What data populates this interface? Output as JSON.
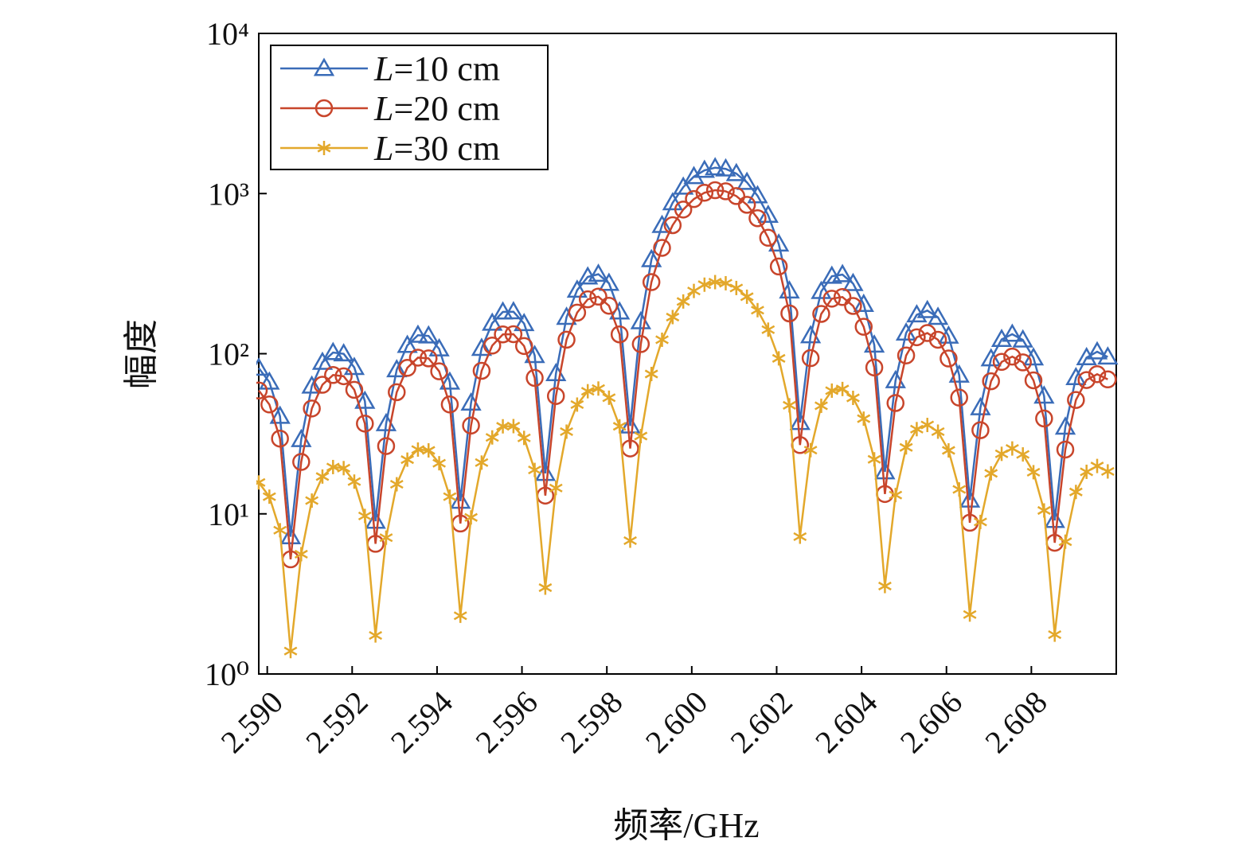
{
  "chart_data": {
    "type": "line",
    "yscale": "log",
    "legend": "upper left",
    "xlabel": "频率/GHz",
    "ylabel": "幅度",
    "xlim": [
      2.5898,
      2.61
    ],
    "ylim": [
      1,
      10000
    ],
    "xticks": [
      {
        "value": 2.59,
        "label": "2.590"
      },
      {
        "value": 2.592,
        "label": "2.592"
      },
      {
        "value": 2.594,
        "label": "2.594"
      },
      {
        "value": 2.596,
        "label": "2.596"
      },
      {
        "value": 2.598,
        "label": "2.598"
      },
      {
        "value": 2.6,
        "label": "2.600"
      },
      {
        "value": 2.602,
        "label": "2.602"
      },
      {
        "value": 2.604,
        "label": "2.604"
      },
      {
        "value": 2.606,
        "label": "2.606"
      },
      {
        "value": 2.608,
        "label": "2.608"
      }
    ],
    "yticks": [
      {
        "value": 1,
        "label": "10⁰"
      },
      {
        "value": 10,
        "label": "10¹"
      },
      {
        "value": 100,
        "label": "10²"
      },
      {
        "value": 1000,
        "label": "10³"
      },
      {
        "value": 10000,
        "label": "10⁴"
      }
    ],
    "x": [
      2.5898,
      2.59005,
      2.5903,
      2.59055,
      2.5908,
      2.59105,
      2.5913,
      2.59155,
      2.5918,
      2.59205,
      2.5923,
      2.59255,
      2.5928,
      2.59305,
      2.5933,
      2.59355,
      2.5938,
      2.59405,
      2.5943,
      2.59455,
      2.5948,
      2.59505,
      2.5953,
      2.59555,
      2.5958,
      2.59605,
      2.5963,
      2.59655,
      2.5968,
      2.59705,
      2.5973,
      2.59755,
      2.5978,
      2.59805,
      2.5983,
      2.59855,
      2.5988,
      2.59905,
      2.5993,
      2.59955,
      2.5998,
      2.60005,
      2.6003,
      2.60055,
      2.6008,
      2.60105,
      2.6013,
      2.60155,
      2.6018,
      2.60205,
      2.6023,
      2.60255,
      2.6028,
      2.60305,
      2.6033,
      2.60355,
      2.6038,
      2.60405,
      2.6043,
      2.60455,
      2.6048,
      2.60505,
      2.6053,
      2.60555,
      2.6058,
      2.60605,
      2.6063,
      2.60655,
      2.6068,
      2.60705,
      2.6073,
      2.60755,
      2.6078,
      2.60805,
      2.6083,
      2.60855,
      2.6088,
      2.60905,
      2.6093,
      2.60955,
      2.6098
    ],
    "series": [
      {
        "name": "L=10 cm",
        "color": "#3a6cb8",
        "marker": "triangle",
        "values": [
          81.3,
          66.5,
          40.7,
          7.2,
          29.1,
          62.8,
          88.4,
          101.7,
          99.8,
          82.1,
          50.5,
          9.0,
          36.6,
          79.4,
          112.7,
          130.5,
          129.1,
          107.2,
          66.5,
          12.0,
          49.2,
          108.0,
          155.2,
          182.3,
          182.8,
          154.3,
          97.5,
          17.9,
          75.1,
          168.9,
          249.3,
          301.7,
          313.6,
          275.2,
          182.3,
          35.4,
          158.5,
          386.7,
          632.6,
          876.5,
          1097.5,
          1276.3,
          1397.1,
          1449.3,
          1426.2,
          1332.1,
          1174.9,
          968.6,
          731.7,
          484.0,
          246.5,
          37.2,
          129.6,
          244.8,
          304.6,
          311.9,
          274.3,
          203.4,
          113.3,
          18.3,
          67.9,
          134.7,
          175.0,
          185.9,
          168.8,
          128.8,
          73.5,
          12.2,
          46.0,
          92.9,
          122.8,
          132.4,
          121.9,
          94.2,
          54.4,
          9.1,
          34.8,
          70.9,
          94.5,
          102.8,
          95.4
        ]
      },
      {
        "name": "L=20 cm",
        "color": "#c8452b",
        "marker": "circle",
        "values": [
          58.9,
          48.2,
          29.5,
          5.2,
          21.1,
          45.5,
          64.0,
          73.6,
          72.3,
          59.5,
          36.6,
          6.5,
          26.5,
          57.5,
          81.6,
          94.5,
          93.5,
          77.6,
          48.2,
          8.7,
          35.6,
          78.2,
          112.4,
          132.0,
          132.4,
          111.7,
          70.6,
          13.0,
          54.4,
          122.3,
          180.5,
          218.5,
          227.1,
          199.3,
          132.0,
          25.6,
          114.8,
          280.0,
          458.1,
          634.7,
          794.7,
          924.2,
          1011.7,
          1049.5,
          1032.8,
          964.6,
          850.8,
          701.4,
          529.8,
          350.5,
          178.5,
          26.9,
          93.9,
          177.2,
          220.6,
          225.9,
          198.7,
          147.3,
          82.0,
          13.3,
          49.2,
          97.5,
          126.7,
          134.6,
          122.2,
          93.3,
          53.2,
          8.8,
          33.3,
          67.3,
          88.9,
          95.9,
          88.3,
          68.2,
          39.4,
          6.6,
          25.2,
          51.4,
          68.5,
          74.5,
          69.1
        ]
      },
      {
        "name": "L=30 cm",
        "color": "#e3a82b",
        "marker": "asterisk",
        "values": [
          15.7,
          12.8,
          7.9,
          1.39,
          5.6,
          12.1,
          17.1,
          19.6,
          19.3,
          15.9,
          9.7,
          1.74,
          7.1,
          15.3,
          21.8,
          25.2,
          24.9,
          20.7,
          12.8,
          2.31,
          9.5,
          20.9,
          30.0,
          35.2,
          35.3,
          29.8,
          18.8,
          3.46,
          14.5,
          32.6,
          48.1,
          58.3,
          60.6,
          53.1,
          35.2,
          6.8,
          30.6,
          74.7,
          122.2,
          169.3,
          211.9,
          246.5,
          269.8,
          279.9,
          275.4,
          257.2,
          226.9,
          187.0,
          141.3,
          93.5,
          47.6,
          7.2,
          25.0,
          47.3,
          58.8,
          60.2,
          53.0,
          39.3,
          21.9,
          3.54,
          13.1,
          26.0,
          33.8,
          35.9,
          32.6,
          24.9,
          14.2,
          2.35,
          8.9,
          17.9,
          23.7,
          25.6,
          23.5,
          18.2,
          10.5,
          1.76,
          6.7,
          13.7,
          18.3,
          19.9,
          18.4
        ]
      }
    ]
  }
}
